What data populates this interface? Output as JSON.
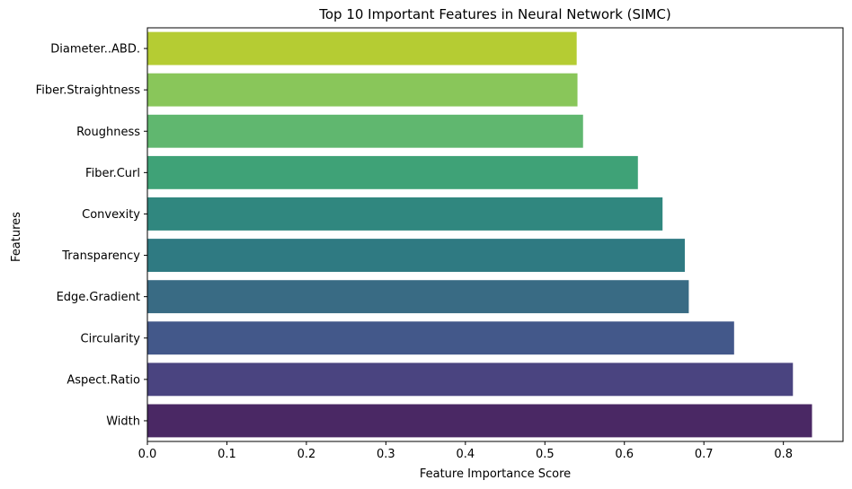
{
  "chart_data": {
    "type": "bar",
    "orientation": "horizontal",
    "title": "Top 10 Important Features in Neural Network (SIMC)",
    "xlabel": "Feature Importance Score",
    "ylabel": "Features",
    "xlim": [
      0,
      0.875
    ],
    "xticks": [
      "0.0",
      "0.1",
      "0.2",
      "0.3",
      "0.4",
      "0.5",
      "0.6",
      "0.7",
      "0.8"
    ],
    "grid": false,
    "categories": [
      "Diameter..ABD.",
      "Fiber.Straightness",
      "Roughness",
      "Fiber.Curl",
      "Convexity",
      "Transparency",
      "Edge.Gradient",
      "Circularity",
      "Aspect.Ratio",
      "Width"
    ],
    "values": [
      0.54,
      0.541,
      0.548,
      0.617,
      0.648,
      0.676,
      0.681,
      0.738,
      0.812,
      0.836
    ],
    "colors": [
      "#b5cc33",
      "#89c65a",
      "#60b76f",
      "#3fa277",
      "#30877f",
      "#2f7a82",
      "#396b84",
      "#43588a",
      "#4a4480",
      "#4a2864"
    ]
  }
}
